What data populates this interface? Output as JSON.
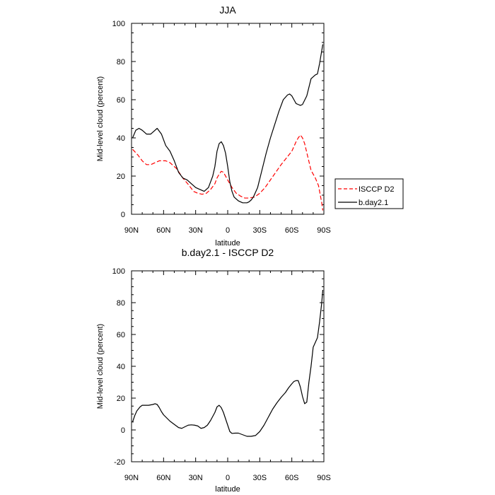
{
  "chart_data": [
    {
      "type": "line",
      "title": "JJA",
      "xlabel": "latitude",
      "ylabel": "Mid-level cloud (percent)",
      "xlim": [
        90,
        -90
      ],
      "ylim": [
        0,
        100
      ],
      "x_ticks": [
        {
          "value": 90,
          "label": "90N"
        },
        {
          "value": 60,
          "label": "60N"
        },
        {
          "value": 30,
          "label": "30N"
        },
        {
          "value": 0,
          "label": "0"
        },
        {
          "value": -30,
          "label": "30S"
        },
        {
          "value": -60,
          "label": "60S"
        },
        {
          "value": -90,
          "label": "90S"
        }
      ],
      "y_ticks": [
        0,
        20,
        40,
        60,
        80,
        100
      ],
      "legend": {
        "position": "right"
      },
      "series": [
        {
          "name": "ISCCP D2",
          "style": "dashed",
          "color": "#ff0000",
          "x": [
            89,
            84,
            80,
            76,
            72,
            68,
            64,
            58,
            54,
            48,
            42,
            36,
            32,
            28,
            24,
            20,
            16,
            12,
            10,
            8,
            6,
            4,
            0,
            -4,
            -8,
            -12,
            -16,
            -20,
            -25,
            -30,
            -35,
            -40,
            -45,
            -50,
            -55,
            -60,
            -64,
            -66,
            -68,
            -70,
            -72,
            -75,
            -78,
            -82,
            -85,
            -88,
            -89
          ],
          "values": [
            34,
            31,
            28,
            26,
            26,
            27,
            28,
            28,
            27,
            24,
            19,
            15,
            12,
            11,
            10.5,
            11,
            13,
            16,
            19,
            21,
            22.5,
            22,
            18,
            14,
            11,
            9.5,
            8.5,
            8.5,
            9,
            11,
            14,
            18,
            22,
            26,
            29.5,
            33,
            38,
            40,
            41.5,
            40,
            37,
            30,
            23,
            19,
            15,
            6,
            2
          ]
        },
        {
          "name": "b.day2.1",
          "style": "solid",
          "color": "#000000",
          "x": [
            89,
            86,
            83,
            80,
            76,
            72,
            68,
            66,
            62,
            58,
            54,
            50,
            46,
            42,
            38,
            34,
            30,
            26,
            22,
            18,
            16,
            14,
            12,
            10,
            8,
            6,
            4,
            2,
            0,
            -2,
            -4,
            -6,
            -10,
            -14,
            -18,
            -20,
            -22,
            -24,
            -28,
            -32,
            -36,
            -40,
            -44,
            -48,
            -52,
            -56,
            -58,
            -60,
            -62,
            -64,
            -66,
            -68,
            -70,
            -74,
            -78,
            -82,
            -84,
            -86,
            -89
          ],
          "values": [
            40,
            44,
            45,
            44,
            42,
            42,
            44,
            45,
            42,
            36,
            33,
            28,
            22,
            19,
            18,
            16,
            14,
            13,
            12,
            14,
            17,
            20,
            25,
            33,
            37,
            38,
            36,
            32,
            25,
            17,
            12,
            9,
            7,
            6,
            6,
            6.5,
            7.5,
            9,
            14,
            23,
            32,
            40,
            47,
            54,
            60,
            62.5,
            63,
            62,
            60,
            58,
            57.5,
            57,
            57.5,
            62,
            71,
            73,
            73.5,
            79,
            89
          ]
        }
      ]
    },
    {
      "type": "line",
      "title": "b.day2.1 - ISCCP D2",
      "xlabel": "latitude",
      "ylabel": "Mid-level cloud (percent)",
      "xlim": [
        90,
        -90
      ],
      "ylim": [
        -20,
        100
      ],
      "x_ticks": [
        {
          "value": 90,
          "label": "90N"
        },
        {
          "value": 60,
          "label": "60N"
        },
        {
          "value": 30,
          "label": "30N"
        },
        {
          "value": 0,
          "label": "0"
        },
        {
          "value": -30,
          "label": "30S"
        },
        {
          "value": -60,
          "label": "60S"
        },
        {
          "value": -90,
          "label": "90S"
        }
      ],
      "y_ticks": [
        -20,
        0,
        20,
        40,
        60,
        80,
        100
      ],
      "series": [
        {
          "name": "b.day2.1 - ISCCP D2",
          "style": "solid",
          "color": "#000000",
          "x": [
            89,
            87,
            85,
            82,
            80,
            77,
            74,
            70,
            68,
            66,
            64,
            62,
            60,
            57,
            54,
            50,
            46,
            43,
            40,
            37,
            34,
            31,
            28,
            25,
            22,
            19,
            16,
            12,
            10,
            8,
            6,
            4,
            2,
            0,
            -2,
            -4,
            -7,
            -10,
            -14,
            -18,
            -22,
            -26,
            -30,
            -34,
            -38,
            -42,
            -46,
            -50,
            -54,
            -57,
            -60,
            -62,
            -64,
            -66,
            -68,
            -70,
            -72,
            -74,
            -76,
            -78,
            -80,
            -82,
            -84,
            -86,
            -88,
            -89
          ],
          "values": [
            5,
            9,
            12,
            14.5,
            15.5,
            15.5,
            15.5,
            16,
            16.5,
            16,
            14,
            11.5,
            9.5,
            7.5,
            5.5,
            3.5,
            1.5,
            1,
            2,
            3,
            3.2,
            3,
            2.5,
            1,
            1.5,
            3,
            6,
            11,
            14.5,
            15.5,
            14,
            11,
            7,
            3,
            -1,
            -2.2,
            -2,
            -2,
            -3,
            -4,
            -4,
            -3.5,
            -1,
            3,
            8,
            13,
            17,
            20.5,
            23.5,
            26.5,
            29,
            30.5,
            31,
            31,
            27,
            21,
            16.5,
            17.5,
            30,
            40,
            52,
            55,
            58,
            68,
            80,
            88
          ]
        }
      ]
    }
  ]
}
